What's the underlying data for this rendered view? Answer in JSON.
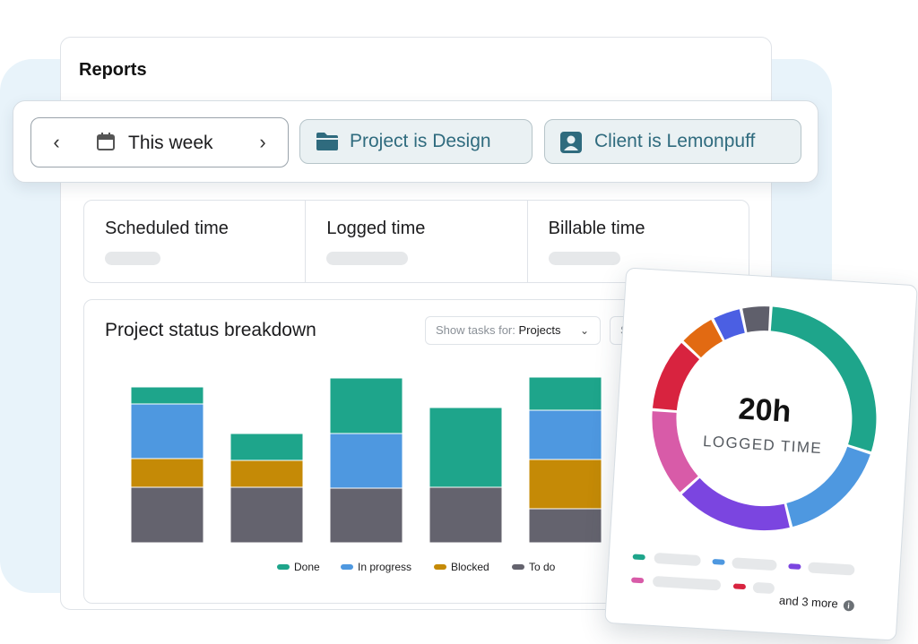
{
  "page": {
    "title": "Reports"
  },
  "filters": {
    "date": {
      "label": "This week",
      "prev_icon": "chevron-left-icon",
      "next_icon": "chevron-right-icon",
      "icon": "calendar-icon"
    },
    "project_chip": {
      "label": "Project is Design",
      "icon": "folder-icon"
    },
    "client_chip": {
      "label": "Client is Lemonpuff",
      "icon": "user-badge-icon"
    }
  },
  "metrics": [
    {
      "label": "Scheduled time"
    },
    {
      "label": "Logged time"
    },
    {
      "label": "Billable time"
    }
  ],
  "status_chart": {
    "title": "Project status breakdown",
    "show_tasks": {
      "prefix": "Show tasks for: ",
      "value": "Projects"
    },
    "second_select": "Sta"
  },
  "chart_data": [
    {
      "type": "bar",
      "stacked": true,
      "title": "Project status breakdown",
      "categories": [
        "",
        "",
        "",
        "",
        ""
      ],
      "series": [
        {
          "name": "To do",
          "color": "#64636e",
          "values": [
            62,
            62,
            61,
            62,
            38
          ]
        },
        {
          "name": "Blocked",
          "color": "#c58a06",
          "values": [
            32,
            30,
            0,
            0,
            55
          ]
        },
        {
          "name": "In progress",
          "color": "#4e98e0",
          "values": [
            61,
            0,
            61,
            0,
            55
          ]
        },
        {
          "name": "Done",
          "color": "#1ea58b",
          "values": [
            19,
            30,
            62,
            89,
            37
          ]
        }
      ],
      "ylim": [
        0,
        185
      ],
      "legend": "bottom"
    },
    {
      "type": "pie",
      "donut": true,
      "center_value": "20h",
      "center_label": "LOGGED TIME",
      "values": [
        27,
        15,
        16,
        12,
        10,
        5,
        4,
        4
      ],
      "colors": [
        "#1ea58b",
        "#4e98e0",
        "#7b45e0",
        "#d85ba8",
        "#d8233f",
        "#e26a12",
        "#4b5fe3",
        "#5f5f6b"
      ]
    }
  ],
  "donut_legend": {
    "more_text": "and 3 more",
    "info_icon": "info-icon",
    "items": [
      {
        "color": "#1ea58b"
      },
      {
        "color": "#4e98e0"
      },
      {
        "color": "#7b45e0"
      },
      {
        "color": "#d85ba8"
      },
      {
        "color": "#d8233f"
      }
    ]
  }
}
